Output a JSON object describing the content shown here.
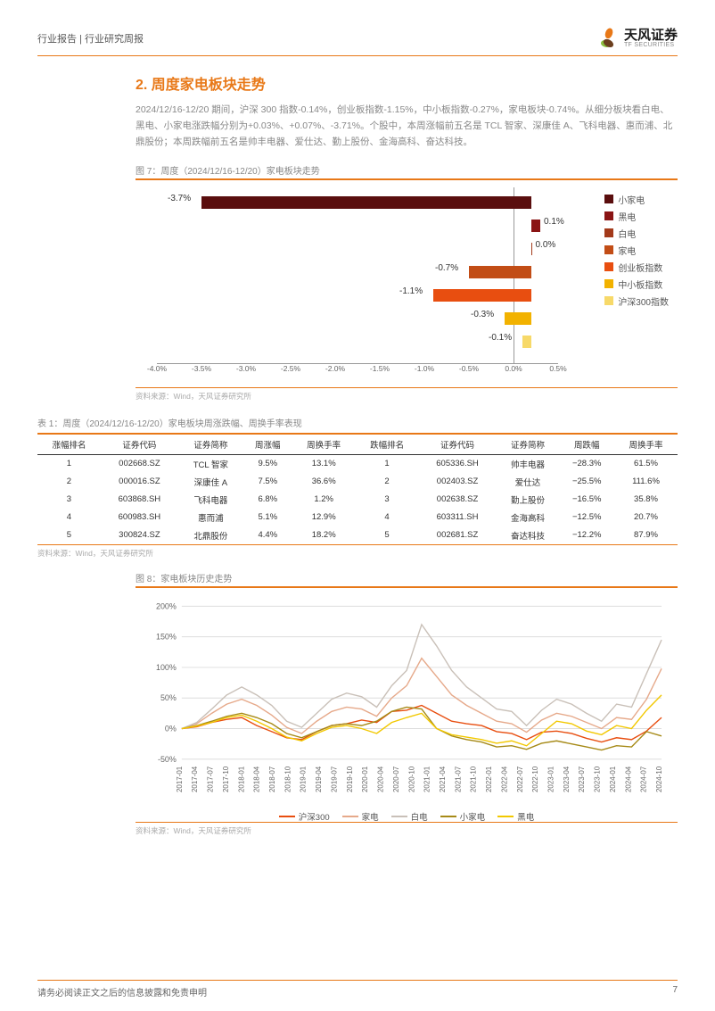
{
  "header": {
    "left": "行业报告 | 行业研究周报",
    "brand_cn": "天风证券",
    "brand_en": "TF SECURITIES"
  },
  "logo_colors": [
    "#e87817",
    "#8bbf3f",
    "#6b3f1e"
  ],
  "section": {
    "title": "2. 周度家电板块走势"
  },
  "body": "2024/12/16-12/20 期间，沪深 300 指数-0.14%，创业板指数-1.15%，中小板指数-0.27%，家电板块-0.74%。从细分板块看白电、黑电、小家电涨跌幅分别为+0.03%、+0.07%、-3.71%。个股中，本周涨幅前五名是 TCL 智家、深康佳 A、飞科电器、惠而浦、北鼎股份；本周跌幅前五名是帅丰电器、爱仕达、勤上股份、金海高科、奋达科技。",
  "fig7": {
    "title": "图 7：周度（2024/12/16-12/20）家电板块走势",
    "source": "资料来源：Wind，天风证券研究所",
    "type": "bar",
    "xmin": -4.0,
    "xmax": 0.5,
    "xstep": 0.5,
    "bars": [
      {
        "name": "小家电",
        "value": -3.7,
        "color": "#5a0e0e",
        "label": "-3.7%"
      },
      {
        "name": "黑电",
        "value": 0.1,
        "color": "#8a1414",
        "label": "0.1%"
      },
      {
        "name": "白电",
        "value": 0.0,
        "color": "#a33a1a",
        "label": "0.0%"
      },
      {
        "name": "家电",
        "value": -0.7,
        "color": "#c24d16",
        "label": "-0.7%"
      },
      {
        "name": "创业板指数",
        "value": -1.1,
        "color": "#e84e10",
        "label": "-1.1%"
      },
      {
        "name": "中小板指数",
        "value": -0.3,
        "color": "#f2b200",
        "label": "-0.3%"
      },
      {
        "name": "沪深300指数",
        "value": -0.1,
        "color": "#f7d969",
        "label": "-0.1%"
      }
    ],
    "xticks": [
      "-4.0%",
      "-3.5%",
      "-3.0%",
      "-2.5%",
      "-2.0%",
      "-1.5%",
      "-1.0%",
      "-0.5%",
      "0.0%",
      "0.5%"
    ]
  },
  "table1": {
    "title": "表 1：周度（2024/12/16-12/20）家电板块周涨跌幅、周换手率表现",
    "source": "资料来源：Wind，天风证券研究所",
    "columns": [
      "涨幅排名",
      "证券代码",
      "证券简称",
      "周涨幅",
      "周换手率",
      "跌幅排名",
      "证券代码",
      "证券简称",
      "周跌幅",
      "周换手率"
    ],
    "rows": [
      [
        "1",
        "002668.SZ",
        "TCL 智家",
        "9.5%",
        "13.1%",
        "1",
        "605336.SH",
        "帅丰电器",
        "−28.3%",
        "61.5%"
      ],
      [
        "2",
        "000016.SZ",
        "深康佳 A",
        "7.5%",
        "36.6%",
        "2",
        "002403.SZ",
        "爱仕达",
        "−25.5%",
        "111.6%"
      ],
      [
        "3",
        "603868.SH",
        "飞科电器",
        "6.8%",
        "1.2%",
        "3",
        "002638.SZ",
        "勤上股份",
        "−16.5%",
        "35.8%"
      ],
      [
        "4",
        "600983.SH",
        "惠而浦",
        "5.1%",
        "12.9%",
        "4",
        "603311.SH",
        "金海高科",
        "−12.5%",
        "20.7%"
      ],
      [
        "5",
        "300824.SZ",
        "北鼎股份",
        "4.4%",
        "18.2%",
        "5",
        "002681.SZ",
        "奋达科技",
        "−12.2%",
        "87.9%"
      ]
    ]
  },
  "fig8": {
    "title": "图 8：家电板块历史走势",
    "source": "资料来源：Wind，天风证券研究所",
    "type": "line",
    "ymin": -50,
    "ymax": 200,
    "ystep": 50,
    "yticks": [
      "-50%",
      "0%",
      "50%",
      "100%",
      "150%",
      "200%"
    ],
    "xticks": [
      "2017-01",
      "2017-04",
      "2017-07",
      "2017-10",
      "2018-01",
      "2018-04",
      "2018-07",
      "2018-10",
      "2019-01",
      "2019-04",
      "2019-07",
      "2019-10",
      "2020-01",
      "2020-04",
      "2020-07",
      "2020-10",
      "2021-01",
      "2021-04",
      "2021-07",
      "2021-10",
      "2022-01",
      "2022-04",
      "2022-07",
      "2022-10",
      "2023-01",
      "2023-04",
      "2023-07",
      "2023-10",
      "2024-01",
      "2024-04",
      "2024-07",
      "2024-10"
    ],
    "series": [
      {
        "name": "沪深300",
        "color": "#e84e10",
        "values": [
          0,
          3,
          10,
          15,
          18,
          5,
          -5,
          -15,
          -18,
          -5,
          5,
          8,
          14,
          10,
          28,
          30,
          38,
          25,
          12,
          8,
          5,
          -5,
          -8,
          -18,
          -6,
          -4,
          -8,
          -16,
          -22,
          -15,
          -18,
          -4,
          18
        ]
      },
      {
        "name": "家电",
        "color": "#e6a98a",
        "values": [
          0,
          8,
          25,
          40,
          48,
          38,
          22,
          2,
          -8,
          12,
          28,
          35,
          32,
          20,
          50,
          70,
          115,
          85,
          55,
          38,
          25,
          12,
          8,
          -6,
          14,
          25,
          20,
          10,
          0,
          18,
          15,
          48,
          98
        ]
      },
      {
        "name": "白电",
        "color": "#c9c0b8",
        "values": [
          0,
          10,
          32,
          55,
          68,
          55,
          38,
          12,
          2,
          25,
          48,
          58,
          52,
          35,
          70,
          95,
          170,
          135,
          95,
          68,
          50,
          32,
          28,
          5,
          30,
          48,
          40,
          25,
          12,
          40,
          35,
          90,
          145
        ]
      },
      {
        "name": "小家电",
        "color": "#a68a17",
        "values": [
          0,
          5,
          12,
          20,
          25,
          18,
          8,
          -8,
          -15,
          -5,
          5,
          8,
          5,
          12,
          28,
          35,
          32,
          0,
          -12,
          -18,
          -22,
          -30,
          -28,
          -34,
          -24,
          -20,
          -25,
          -30,
          -35,
          -28,
          -30,
          -5,
          -12
        ]
      },
      {
        "name": "黑电",
        "color": "#f2c800",
        "values": [
          0,
          4,
          10,
          18,
          22,
          12,
          0,
          -14,
          -20,
          -8,
          2,
          5,
          0,
          -8,
          10,
          18,
          25,
          0,
          -10,
          -14,
          -18,
          -24,
          -20,
          -28,
          -8,
          12,
          8,
          -4,
          -10,
          5,
          0,
          30,
          55
        ]
      }
    ]
  },
  "footer": {
    "disclaimer": "请务必阅读正文之后的信息披露和免责申明",
    "page": "7"
  }
}
